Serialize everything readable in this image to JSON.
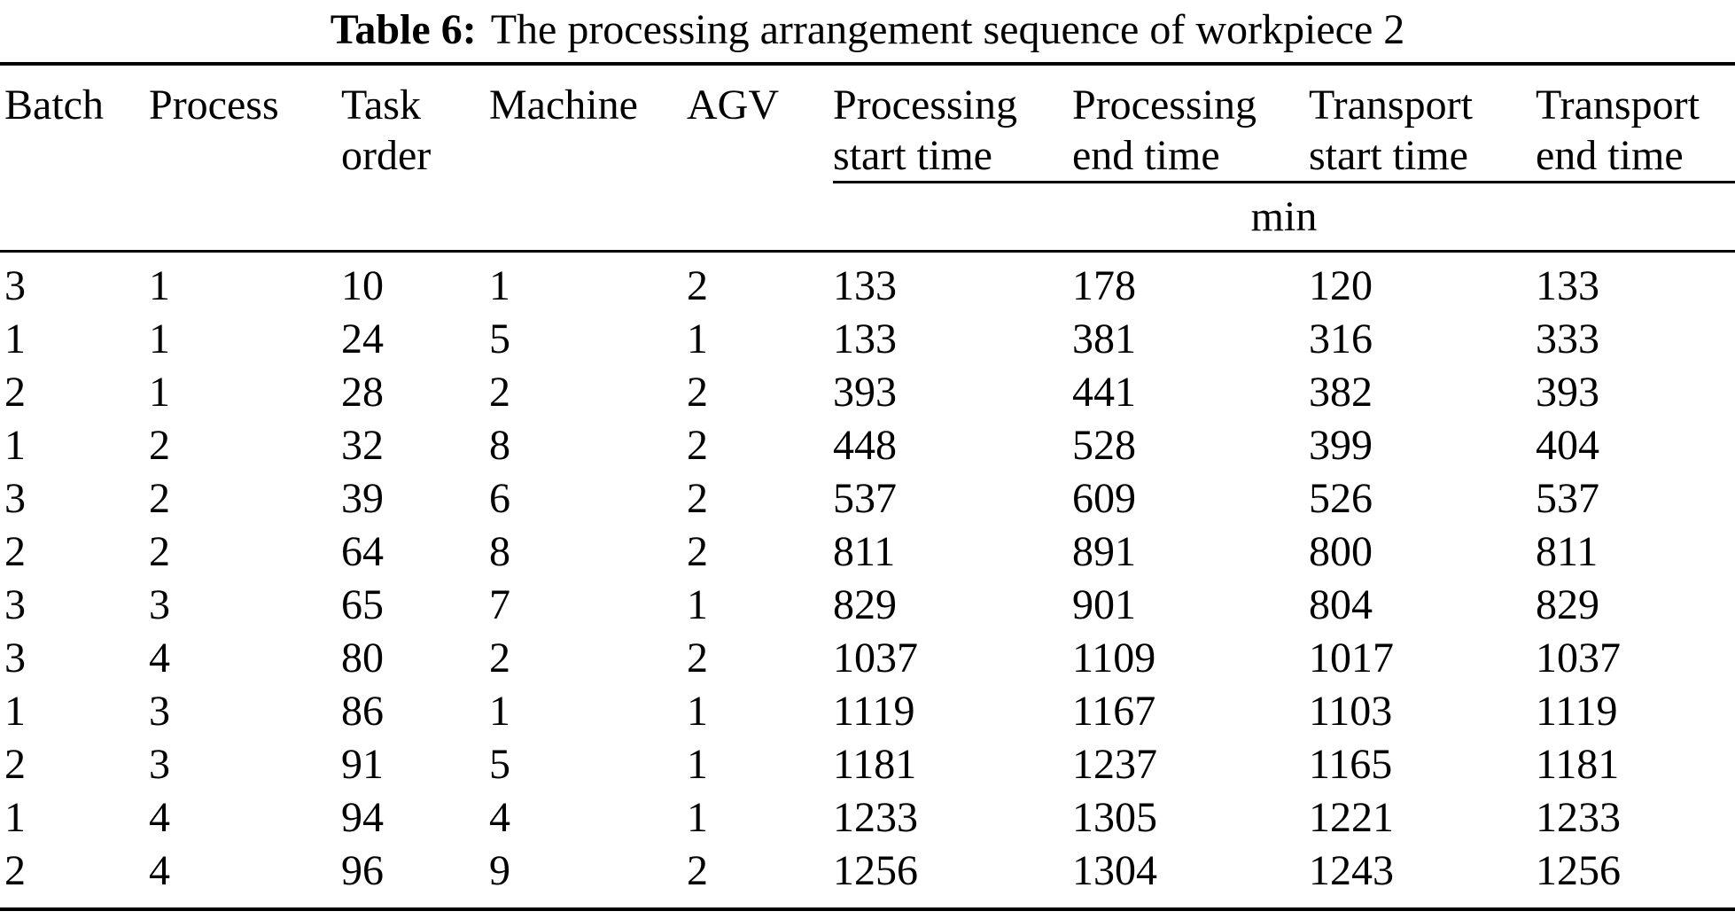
{
  "title": {
    "label": "Table 6:",
    "text": "The processing arrangement sequence of workpiece 2"
  },
  "colors": {
    "background": "#ffffff",
    "text": "#000000",
    "rule": "#000000"
  },
  "table": {
    "headers": [
      {
        "line1": "Batch",
        "line2": ""
      },
      {
        "line1": "Process",
        "line2": ""
      },
      {
        "line1": "Task",
        "line2": "order"
      },
      {
        "line1": "Machine",
        "line2": ""
      },
      {
        "line1": "AGV",
        "line2": ""
      },
      {
        "line1": "Processing",
        "line2": "start time"
      },
      {
        "line1": "Processing",
        "line2": "end time"
      },
      {
        "line1": "Transport",
        "line2": "start time"
      },
      {
        "line1": "Transport",
        "line2": "end time"
      }
    ],
    "unit_label": "min",
    "rows": [
      [
        3,
        1,
        10,
        1,
        2,
        133,
        178,
        120,
        133
      ],
      [
        1,
        1,
        24,
        5,
        1,
        133,
        381,
        316,
        333
      ],
      [
        2,
        1,
        28,
        2,
        2,
        393,
        441,
        382,
        393
      ],
      [
        1,
        2,
        32,
        8,
        2,
        448,
        528,
        399,
        404
      ],
      [
        3,
        2,
        39,
        6,
        2,
        537,
        609,
        526,
        537
      ],
      [
        2,
        2,
        64,
        8,
        2,
        811,
        891,
        800,
        811
      ],
      [
        3,
        3,
        65,
        7,
        1,
        829,
        901,
        804,
        829
      ],
      [
        3,
        4,
        80,
        2,
        2,
        1037,
        1109,
        1017,
        1037
      ],
      [
        1,
        3,
        86,
        1,
        1,
        1119,
        1167,
        1103,
        1119
      ],
      [
        2,
        3,
        91,
        5,
        1,
        1181,
        1237,
        1165,
        1181
      ],
      [
        1,
        4,
        94,
        4,
        1,
        1233,
        1305,
        1221,
        1233
      ],
      [
        2,
        4,
        96,
        9,
        2,
        1256,
        1304,
        1243,
        1256
      ]
    ]
  }
}
